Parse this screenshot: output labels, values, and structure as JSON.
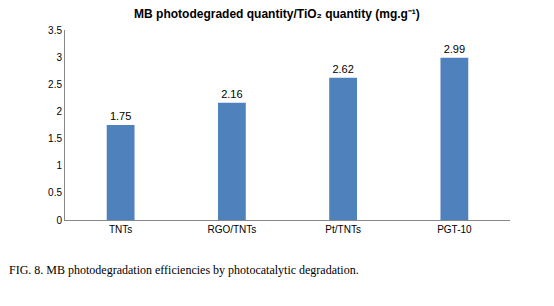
{
  "chart_data": {
    "type": "bar",
    "title": "MB photodegraded quantity/TiO₂ quantity (mg.g⁻¹)",
    "caption": "FIG. 8. MB photodegradation efficiencies by photocatalytic degradation.",
    "categories": [
      "TNTs",
      "RGO/TNTs",
      "Pt/TNTs",
      "PGT-10"
    ],
    "values": [
      1.75,
      2.16,
      2.62,
      2.99
    ],
    "color": "#4f81bd",
    "ylim": [
      0,
      3.5
    ],
    "yticks": [
      0,
      0.5,
      1,
      1.5,
      2,
      2.5,
      3,
      3.5
    ],
    "grid": false,
    "data_labels": true
  }
}
